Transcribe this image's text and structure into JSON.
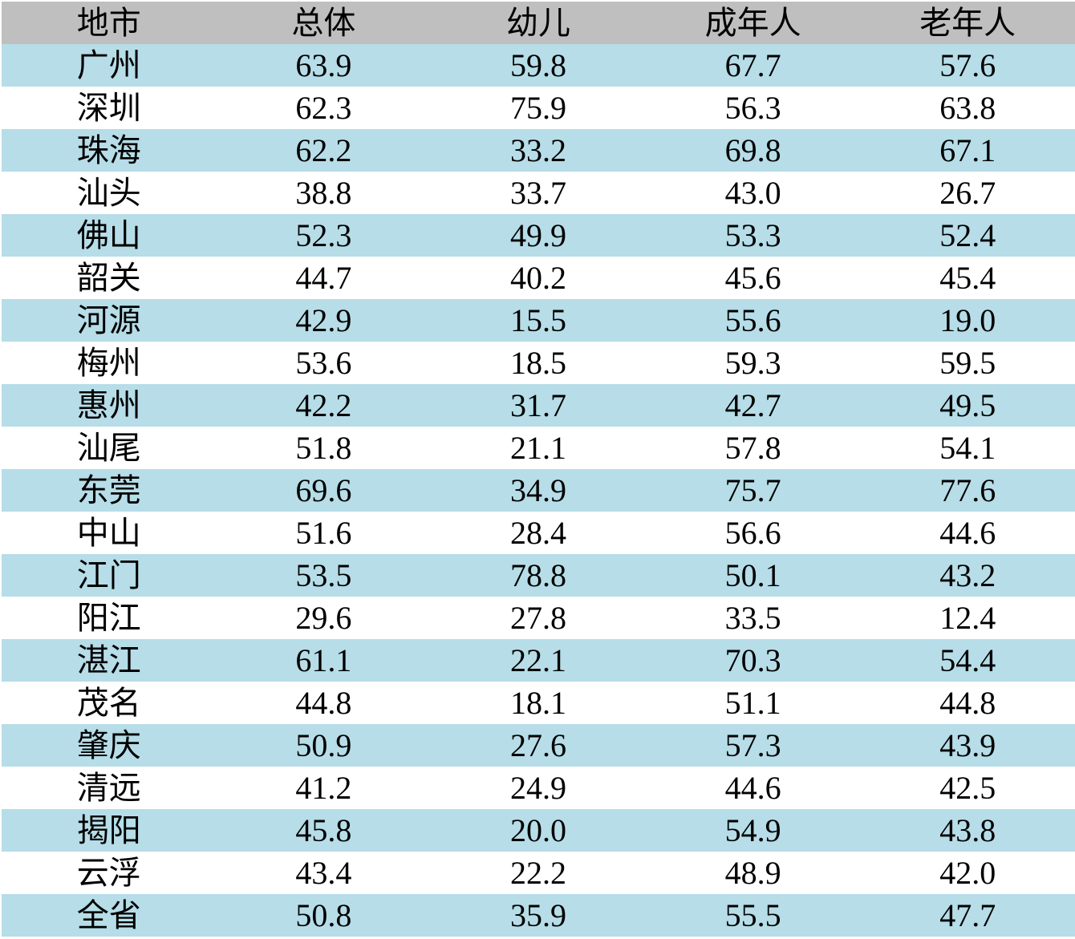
{
  "table": {
    "columns": [
      "地市",
      "总体",
      "幼儿",
      "成年人",
      "老年人"
    ],
    "rows": [
      {
        "city": "广州",
        "values": [
          "63.9",
          "59.8",
          "67.7",
          "57.6"
        ]
      },
      {
        "city": "深圳",
        "values": [
          "62.3",
          "75.9",
          "56.3",
          "63.8"
        ]
      },
      {
        "city": "珠海",
        "values": [
          "62.2",
          "33.2",
          "69.8",
          "67.1"
        ]
      },
      {
        "city": "汕头",
        "values": [
          "38.8",
          "33.7",
          "43.0",
          "26.7"
        ]
      },
      {
        "city": "佛山",
        "values": [
          "52.3",
          "49.9",
          "53.3",
          "52.4"
        ]
      },
      {
        "city": "韶关",
        "values": [
          "44.7",
          "40.2",
          "45.6",
          "45.4"
        ]
      },
      {
        "city": "河源",
        "values": [
          "42.9",
          "15.5",
          "55.6",
          "19.0"
        ]
      },
      {
        "city": "梅州",
        "values": [
          "53.6",
          "18.5",
          "59.3",
          "59.5"
        ]
      },
      {
        "city": "惠州",
        "values": [
          "42.2",
          "31.7",
          "42.7",
          "49.5"
        ]
      },
      {
        "city": "汕尾",
        "values": [
          "51.8",
          "21.1",
          "57.8",
          "54.1"
        ]
      },
      {
        "city": "东莞",
        "values": [
          "69.6",
          "34.9",
          "75.7",
          "77.6"
        ]
      },
      {
        "city": "中山",
        "values": [
          "51.6",
          "28.4",
          "56.6",
          "44.6"
        ]
      },
      {
        "city": "江门",
        "values": [
          "53.5",
          "78.8",
          "50.1",
          "43.2"
        ]
      },
      {
        "city": "阳江",
        "values": [
          "29.6",
          "27.8",
          "33.5",
          "12.4"
        ]
      },
      {
        "city": "湛江",
        "values": [
          "61.1",
          "22.1",
          "70.3",
          "54.4"
        ]
      },
      {
        "city": "茂名",
        "values": [
          "44.8",
          "18.1",
          "51.1",
          "44.8"
        ]
      },
      {
        "city": "肇庆",
        "values": [
          "50.9",
          "27.6",
          "57.3",
          "43.9"
        ]
      },
      {
        "city": "清远",
        "values": [
          "41.2",
          "24.9",
          "44.6",
          "42.5"
        ]
      },
      {
        "city": "揭阳",
        "values": [
          "45.8",
          "20.0",
          "54.9",
          "43.8"
        ]
      },
      {
        "city": "云浮",
        "values": [
          "43.4",
          "22.2",
          "48.9",
          "42.0"
        ]
      },
      {
        "city": "全省",
        "values": [
          "50.8",
          "35.9",
          "55.5",
          "47.7"
        ]
      }
    ]
  },
  "colors": {
    "header_bg": "#bfbfbf",
    "row_alt_bg": "#b6dde8",
    "row_bg": "#ffffff",
    "text": "#000000"
  },
  "chart_data": {
    "type": "table",
    "title": "",
    "columns": [
      "地市",
      "总体",
      "幼儿",
      "成年人",
      "老年人"
    ],
    "categories": [
      "广州",
      "深圳",
      "珠海",
      "汕头",
      "佛山",
      "韶关",
      "河源",
      "梅州",
      "惠州",
      "汕尾",
      "东莞",
      "中山",
      "江门",
      "阳江",
      "湛江",
      "茂名",
      "肇庆",
      "清远",
      "揭阳",
      "云浮",
      "全省"
    ],
    "series": [
      {
        "name": "总体",
        "values": [
          63.9,
          62.3,
          62.2,
          38.8,
          52.3,
          44.7,
          42.9,
          53.6,
          42.2,
          51.8,
          69.6,
          51.6,
          53.5,
          29.6,
          61.1,
          44.8,
          50.9,
          41.2,
          45.8,
          43.4,
          50.8
        ]
      },
      {
        "name": "幼儿",
        "values": [
          59.8,
          75.9,
          33.2,
          33.7,
          49.9,
          40.2,
          15.5,
          18.5,
          31.7,
          21.1,
          34.9,
          28.4,
          78.8,
          27.8,
          22.1,
          18.1,
          27.6,
          24.9,
          20.0,
          22.2,
          35.9
        ]
      },
      {
        "name": "成年人",
        "values": [
          67.7,
          56.3,
          69.8,
          43.0,
          53.3,
          45.6,
          55.6,
          59.3,
          42.7,
          57.8,
          75.7,
          56.6,
          50.1,
          33.5,
          70.3,
          51.1,
          57.3,
          44.6,
          54.9,
          48.9,
          55.5
        ]
      },
      {
        "name": "老年人",
        "values": [
          57.6,
          63.8,
          67.1,
          26.7,
          52.4,
          45.4,
          19.0,
          59.5,
          49.5,
          54.1,
          77.6,
          44.6,
          43.2,
          12.4,
          54.4,
          44.8,
          43.9,
          42.5,
          43.8,
          42.0,
          47.7
        ]
      }
    ],
    "layout": {
      "header_fill": "#bfbfbf",
      "banded_rows": true,
      "band_fill": "#b6dde8",
      "grid": false
    }
  }
}
